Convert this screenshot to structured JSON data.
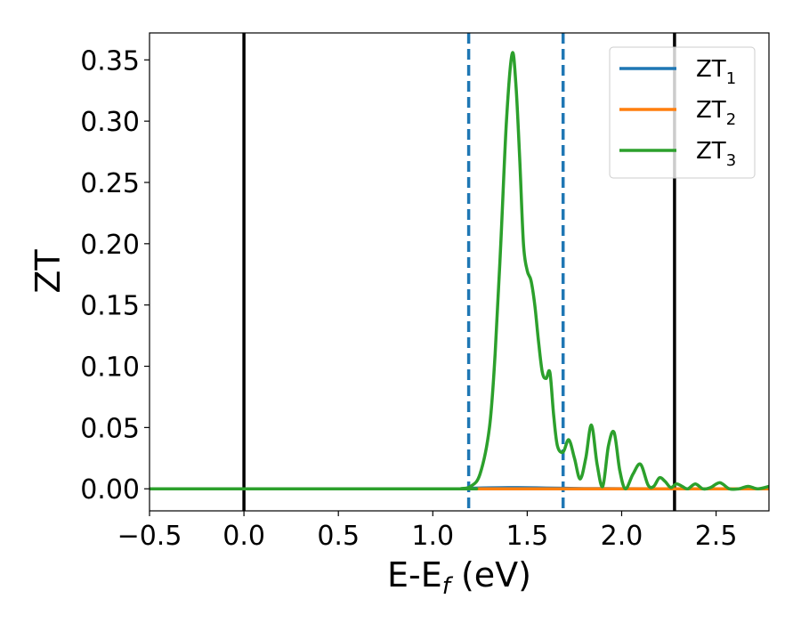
{
  "chart_data": {
    "type": "line",
    "title": "",
    "xlabel_main": "E-E",
    "xlabel_sub": "f",
    "xlabel_unit": " (eV)",
    "ylabel": "ZT",
    "xlim": [
      -0.5,
      2.78
    ],
    "ylim": [
      -0.018,
      0.372
    ],
    "grid": false,
    "legend_position": "top-right",
    "x_ticks": [
      {
        "value": -0.5,
        "label": "−0.5"
      },
      {
        "value": 0.0,
        "label": "0.0"
      },
      {
        "value": 0.5,
        "label": "0.5"
      },
      {
        "value": 1.0,
        "label": "1.0"
      },
      {
        "value": 1.5,
        "label": "1.5"
      },
      {
        "value": 2.0,
        "label": "2.0"
      },
      {
        "value": 2.5,
        "label": "2.5"
      }
    ],
    "y_ticks": [
      {
        "value": 0.0,
        "label": "0.00"
      },
      {
        "value": 0.05,
        "label": "0.05"
      },
      {
        "value": 0.1,
        "label": "0.10"
      },
      {
        "value": 0.15,
        "label": "0.15"
      },
      {
        "value": 0.2,
        "label": "0.20"
      },
      {
        "value": 0.25,
        "label": "0.25"
      },
      {
        "value": 0.3,
        "label": "0.30"
      },
      {
        "value": 0.35,
        "label": "0.35"
      }
    ],
    "vlines": [
      {
        "x": 0.0,
        "color": "#000000",
        "style": "solid"
      },
      {
        "x": 2.28,
        "color": "#000000",
        "style": "solid"
      },
      {
        "x": 1.19,
        "color": "#1f77b4",
        "style": "dashed"
      },
      {
        "x": 1.69,
        "color": "#1f77b4",
        "style": "dashed"
      }
    ],
    "series": [
      {
        "name": "ZT",
        "subscript": "1",
        "color": "#1f77b4",
        "x": [
          -0.5,
          1.15,
          1.2,
          1.3,
          1.4,
          1.5,
          1.6,
          1.7,
          1.8,
          2.0,
          2.2,
          2.5,
          2.78
        ],
        "y": [
          0.0,
          0.0,
          0.0004,
          0.0008,
          0.001,
          0.0009,
          0.0006,
          0.0004,
          0.0002,
          0.0001,
          0.0,
          0.0,
          0.0
        ]
      },
      {
        "name": "ZT",
        "subscript": "2",
        "color": "#ff7f0e",
        "x": [
          -0.5,
          2.78
        ],
        "y": [
          0.0,
          0.0
        ]
      },
      {
        "name": "ZT",
        "subscript": "3",
        "color": "#2ca02c",
        "x": [
          -0.5,
          1.1,
          1.15,
          1.2,
          1.25,
          1.3,
          1.33,
          1.36,
          1.39,
          1.42,
          1.44,
          1.46,
          1.48,
          1.5,
          1.52,
          1.54,
          1.56,
          1.58,
          1.6,
          1.62,
          1.64,
          1.66,
          1.69,
          1.72,
          1.75,
          1.78,
          1.81,
          1.84,
          1.87,
          1.9,
          1.93,
          1.96,
          1.99,
          2.02,
          2.06,
          2.1,
          2.14,
          2.17,
          2.2,
          2.23,
          2.26,
          2.29,
          2.32,
          2.35,
          2.39,
          2.43,
          2.47,
          2.52,
          2.57,
          2.62,
          2.67,
          2.72,
          2.78
        ],
        "y": [
          0.0,
          0.0,
          0.0002,
          0.002,
          0.012,
          0.05,
          0.11,
          0.2,
          0.3,
          0.355,
          0.33,
          0.27,
          0.2,
          0.178,
          0.17,
          0.15,
          0.12,
          0.095,
          0.09,
          0.095,
          0.06,
          0.035,
          0.03,
          0.04,
          0.025,
          0.008,
          0.025,
          0.052,
          0.02,
          0.002,
          0.035,
          0.046,
          0.015,
          0.0,
          0.012,
          0.02,
          0.003,
          0.002,
          0.009,
          0.006,
          0.001,
          0.004,
          0.002,
          0.0,
          0.004,
          0.0,
          0.001,
          0.005,
          0.0,
          0.0,
          0.002,
          0.0,
          0.002
        ]
      }
    ]
  }
}
